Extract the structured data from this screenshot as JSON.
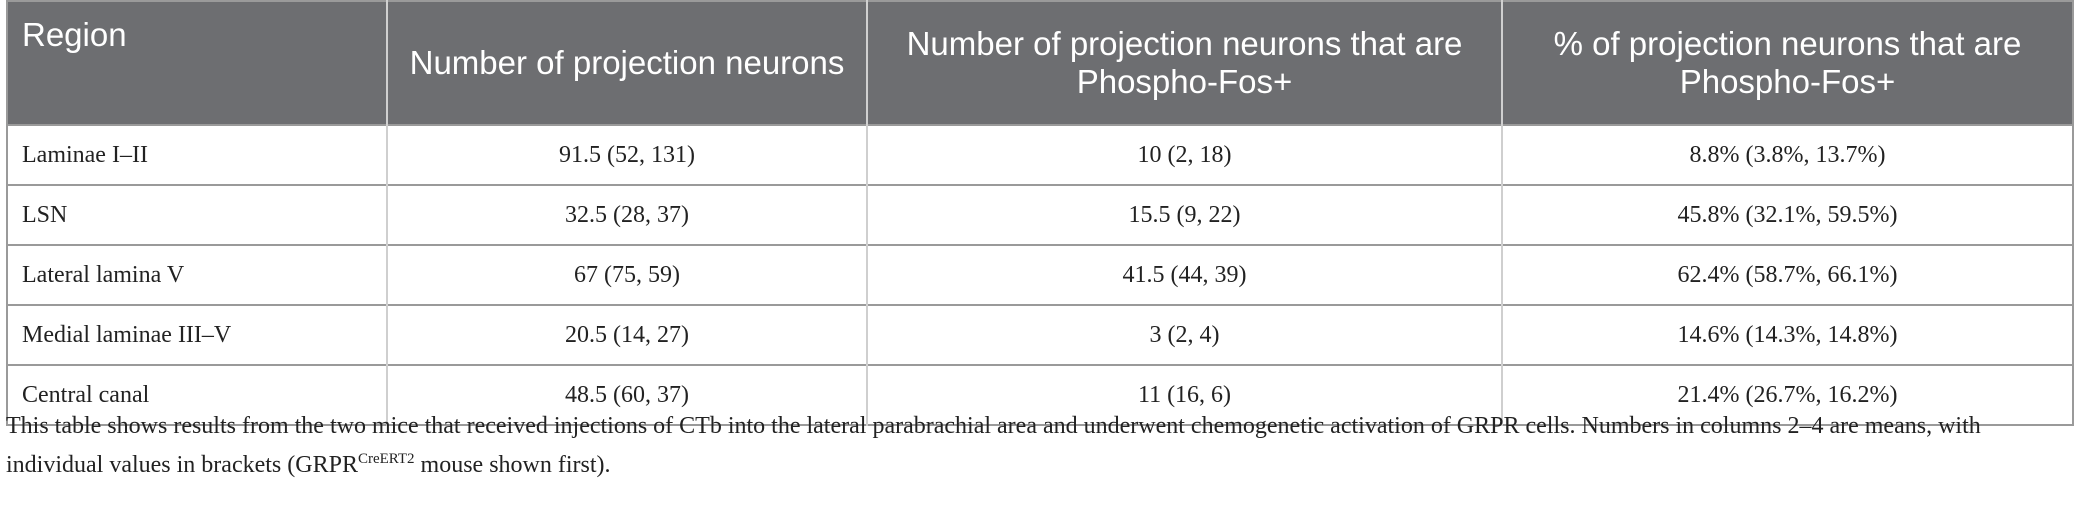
{
  "table": {
    "header": [
      "Region",
      "Number of projection neurons",
      "Number of projection neurons that are Phospho-Fos+",
      "% of projection neurons that are Phospho-Fos+"
    ],
    "rows": [
      [
        "Laminae I–II",
        "91.5 (52, 131)",
        "10 (2, 18)",
        "8.8% (3.8%, 13.7%)"
      ],
      [
        "LSN",
        "32.5 (28, 37)",
        "15.5 (9, 22)",
        "45.8% (32.1%, 59.5%)"
      ],
      [
        "Lateral lamina V",
        "67 (75, 59)",
        "41.5 (44, 39)",
        "62.4% (58.7%, 66.1%)"
      ],
      [
        "Medial laminae III–V",
        "20.5 (14, 27)",
        "3 (2, 4)",
        "14.6% (14.3%, 14.8%)"
      ],
      [
        "Central canal",
        "48.5 (60, 37)",
        "11 (16, 6)",
        "21.4% (26.7%, 16.2%)"
      ]
    ]
  },
  "footnote": {
    "before": "This table shows results from the two mice that received injections of CTb into the lateral parabrachial area and underwent chemogenetic activation of GRPR cells. Numbers in columns 2–4 are means, with individual values in brackets (GRPR",
    "sup": "CreERT2",
    "after": " mouse shown first)."
  }
}
